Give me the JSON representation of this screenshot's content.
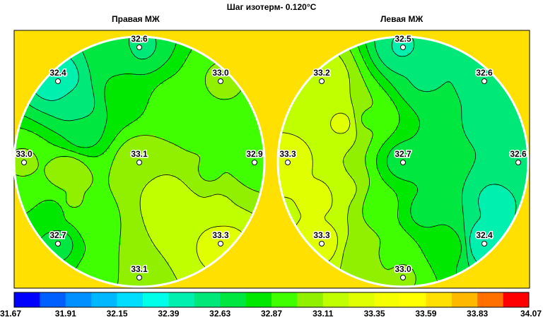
{
  "title": "Шаг изотерм- 0.120°C",
  "colors": {
    "background_fill": "#FFE000",
    "panel_border": "#000000",
    "circle_outline": "#ffffff",
    "isoline": "#000000",
    "point_fill": "#ffffff",
    "point_stroke": "#000000"
  },
  "chart_data": [
    {
      "type": "heatmap",
      "title": "Правая МЖ",
      "isotherm_step": 0.12,
      "points": [
        {
          "position": "top",
          "value": "32.6"
        },
        {
          "position": "upper-left",
          "value": "32.4"
        },
        {
          "position": "upper-right",
          "value": "33.0"
        },
        {
          "position": "left",
          "value": "33.0"
        },
        {
          "position": "center",
          "value": "33.1"
        },
        {
          "position": "right",
          "value": "32.9"
        },
        {
          "position": "lower-left",
          "value": "32.7"
        },
        {
          "position": "lower-right",
          "value": "33.3"
        },
        {
          "position": "bottom",
          "value": "33.1"
        }
      ]
    },
    {
      "type": "heatmap",
      "title": "Левая МЖ",
      "isotherm_step": 0.12,
      "points": [
        {
          "position": "top",
          "value": "32.5"
        },
        {
          "position": "upper-left",
          "value": "33.2"
        },
        {
          "position": "upper-right",
          "value": "32.6"
        },
        {
          "position": "left",
          "value": "33.3"
        },
        {
          "position": "center",
          "value": "32.7"
        },
        {
          "position": "right",
          "value": "32.6"
        },
        {
          "position": "lower-left",
          "value": "33.3"
        },
        {
          "position": "lower-right",
          "value": "32.4"
        },
        {
          "position": "bottom",
          "value": "33.0"
        }
      ]
    },
    {
      "type": "colorbar",
      "min": 31.67,
      "max": 34.07,
      "step": 0.12,
      "tick_labels": [
        "31.67",
        "31.91",
        "32.15",
        "32.39",
        "32.63",
        "32.87",
        "33.11",
        "33.35",
        "33.59",
        "33.83",
        "34.07"
      ],
      "colors": [
        "#0000FF",
        "#0060FF",
        "#0090FF",
        "#00B8FF",
        "#00DDFF",
        "#00FFE8",
        "#00F0B0",
        "#00E878",
        "#00E840",
        "#00E800",
        "#40FF00",
        "#90F000",
        "#C0FF00",
        "#E0FF00",
        "#F5FF00",
        "#FFFF00",
        "#FFE000",
        "#FFB800",
        "#FF7000",
        "#FF0000"
      ]
    }
  ]
}
